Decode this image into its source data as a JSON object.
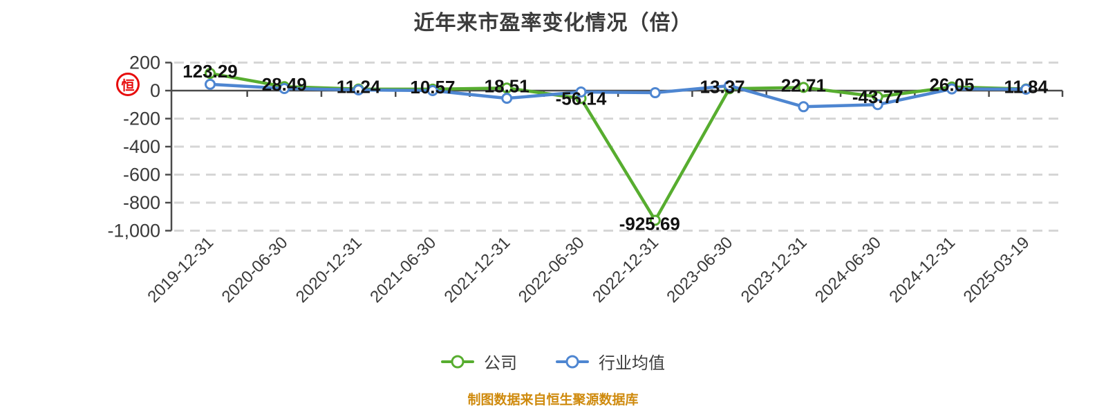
{
  "title": "近年来市盈率变化情况（倍）",
  "seal_char": "恒",
  "footer": "制图数据来自恒生聚源数据库",
  "legend": {
    "items": [
      {
        "label": "公司",
        "color": "#57ad2f"
      },
      {
        "label": "行业均值",
        "color": "#4e86d1"
      }
    ]
  },
  "colors": {
    "company": "#57ad2f",
    "industry": "#4e86d1",
    "grid": "#d6d6d6",
    "axis": "#4a4a4a",
    "tick_label": "#3a3a3a",
    "data_label": "#111111",
    "title": "#3c3c3c",
    "footer": "#cf8a0d",
    "seal": "#e60000"
  },
  "chart_data": {
    "type": "line",
    "title": "近年来市盈率变化情况（倍）",
    "categories": [
      "2019-12-31",
      "2020-06-30",
      "2020-12-31",
      "2021-06-30",
      "2021-12-31",
      "2022-06-30",
      "2022-12-31",
      "2023-06-30",
      "2023-12-31",
      "2024-06-30",
      "2024-12-31",
      "2025-03-19"
    ],
    "series": [
      {
        "name": "公司",
        "color": "#57ad2f",
        "values": [
          123.29,
          28.49,
          11.24,
          10.57,
          18.51,
          -56.14,
          -925.69,
          13.37,
          22.71,
          -43.77,
          26.05,
          11.84
        ],
        "labels": [
          "123.29",
          "28.49",
          "11.24",
          "10.57",
          "18.51",
          "-56.14",
          "-925.69",
          "13.37",
          "22.71",
          "-43.77",
          "26.05",
          "11.84"
        ],
        "labels_shown": true
      },
      {
        "name": "行业均值",
        "color": "#4e86d1",
        "values": [
          45,
          15,
          5,
          0,
          -55,
          -10,
          -15,
          35,
          -115,
          -100,
          12,
          10
        ],
        "labels_shown": false
      }
    ],
    "y_ticks": {
      "values": [
        200,
        0,
        -200,
        -400,
        -600,
        -800,
        -1000
      ],
      "labels": [
        "200",
        "0",
        "-200",
        "-400",
        "-600",
        "-800",
        "-1,000"
      ]
    },
    "ylim": [
      -1000,
      200
    ],
    "grid": "horizontal-dashed",
    "legend_position": "bottom",
    "marker": "white-circle"
  }
}
